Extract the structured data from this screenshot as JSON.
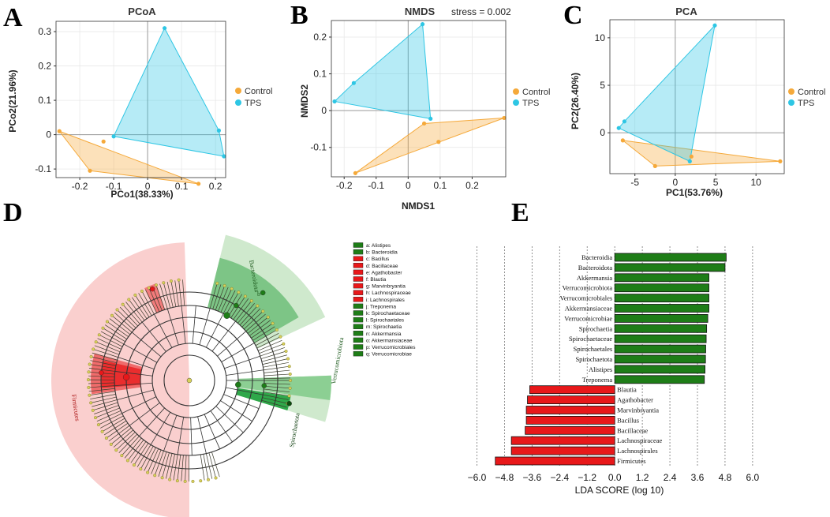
{
  "panels": {
    "A": "A",
    "B": "B",
    "C": "C",
    "D": "D",
    "E": "E"
  },
  "colors": {
    "control": "#f5a93a",
    "tps": "#2ec6e4",
    "green": "#1e7d17",
    "red": "#e8181a",
    "pink": "#f9c7c6"
  },
  "chart_data": [
    {
      "id": "A",
      "type": "scatter",
      "title": "PCoA",
      "subtitle": "",
      "xlabel": "PCo1(38.33%)",
      "ylabel": "PCo2(21.96%)",
      "xlim": [
        -0.27,
        0.23
      ],
      "ylim": [
        -0.125,
        0.33
      ],
      "xticks": [
        -0.2,
        -0.1,
        0,
        0.1,
        0.2
      ],
      "xticklabels": [
        "-0.2",
        "-0.1",
        "0",
        "0.1",
        "0.2"
      ],
      "yticks": [
        -0.1,
        0,
        0.1,
        0.2,
        0.3
      ],
      "yticklabels": [
        "-0.1",
        "0",
        "0.1",
        "0.2",
        "0.3"
      ],
      "legend": [
        "Control",
        "TPS"
      ],
      "series": [
        {
          "name": "Control",
          "points": [
            [
              -0.26,
              0.01
            ],
            [
              -0.13,
              -0.02
            ],
            [
              -0.17,
              -0.105
            ],
            [
              0.15,
              -0.143
            ]
          ],
          "hull": [
            [
              -0.26,
              0.01
            ],
            [
              0.15,
              -0.143
            ],
            [
              -0.17,
              -0.105
            ]
          ]
        },
        {
          "name": "TPS",
          "points": [
            [
              -0.1,
              -0.005
            ],
            [
              0.05,
              0.31
            ],
            [
              0.21,
              0.012
            ],
            [
              0.225,
              -0.063
            ]
          ],
          "hull": [
            [
              -0.1,
              -0.005
            ],
            [
              0.05,
              0.31
            ],
            [
              0.21,
              0.012
            ],
            [
              0.225,
              -0.063
            ]
          ]
        }
      ]
    },
    {
      "id": "B",
      "type": "scatter",
      "title": "NMDS",
      "subtitle": "stress = 0.002",
      "xlabel": "NMDS1",
      "ylabel": "NMDS2",
      "xlim": [
        -0.24,
        0.305
      ],
      "ylim": [
        -0.18,
        0.245
      ],
      "xticks": [
        -0.2,
        -0.1,
        0,
        0.1,
        0.2
      ],
      "xticklabels": [
        "-0.2",
        "-0.1",
        "0",
        "0.1",
        "0.2"
      ],
      "yticks": [
        -0.1,
        0,
        0.1,
        0.2
      ],
      "yticklabels": [
        "-0.1",
        "0",
        "0.1",
        "0.2"
      ],
      "legend": [
        "Control",
        "TPS"
      ],
      "series": [
        {
          "name": "Control",
          "points": [
            [
              -0.165,
              -0.17
            ],
            [
              0.095,
              -0.085
            ],
            [
              0.05,
              -0.035
            ],
            [
              0.3,
              -0.02
            ]
          ],
          "hull": [
            [
              -0.165,
              -0.17
            ],
            [
              0.05,
              -0.035
            ],
            [
              0.3,
              -0.02
            ]
          ]
        },
        {
          "name": "TPS",
          "points": [
            [
              -0.23,
              0.025
            ],
            [
              -0.17,
              0.075
            ],
            [
              0.045,
              0.235
            ],
            [
              0.07,
              -0.022
            ]
          ],
          "hull": [
            [
              -0.23,
              0.025
            ],
            [
              -0.17,
              0.075
            ],
            [
              0.045,
              0.235
            ],
            [
              0.07,
              -0.022
            ]
          ]
        }
      ]
    },
    {
      "id": "C",
      "type": "scatter",
      "title": "PCA",
      "subtitle": "",
      "xlabel": "PC1(53.76%)",
      "ylabel": "PC2(26.40%)",
      "xlim": [
        -8.1,
        13.5
      ],
      "ylim": [
        -4.3,
        11.9
      ],
      "xticks": [
        -5,
        0,
        5,
        10
      ],
      "xticklabels": [
        "-5",
        "0",
        "5",
        "10"
      ],
      "yticks": [
        0,
        5,
        10
      ],
      "yticklabels": [
        "0",
        "5",
        "10"
      ],
      "legend": [
        "Control",
        "TPS"
      ],
      "series": [
        {
          "name": "Control",
          "points": [
            [
              -6.5,
              -0.8
            ],
            [
              -2.5,
              -3.5
            ],
            [
              2,
              -2.5
            ],
            [
              13,
              -3
            ]
          ],
          "hull": [
            [
              -6.5,
              -0.8
            ],
            [
              13,
              -3
            ],
            [
              -2.5,
              -3.5
            ]
          ]
        },
        {
          "name": "TPS",
          "points": [
            [
              -7,
              0.5
            ],
            [
              -6.3,
              1.2
            ],
            [
              4.9,
              11.3
            ],
            [
              1.8,
              -3
            ]
          ],
          "hull": [
            [
              -7,
              0.5
            ],
            [
              -6.3,
              1.2
            ],
            [
              4.9,
              11.3
            ],
            [
              1.8,
              -3
            ]
          ]
        }
      ]
    },
    {
      "id": "E",
      "type": "bar",
      "orientation": "horizontal",
      "xlabel": "LDA SCORE (log 10)",
      "xlim": [
        -6.6,
        7.0
      ],
      "xticks": [
        -6,
        -4.8,
        -3.6,
        -2.4,
        -1.2,
        0,
        1.2,
        2.4,
        3.6,
        4.8,
        6
      ],
      "xticklabels": [
        "−6.0",
        "−4.8",
        "−3.6",
        "−2.4",
        "−1.2",
        "0.0",
        "1.2",
        "2.4",
        "3.6",
        "4.8",
        "6.0"
      ],
      "categories": [
        "Bacteroidia",
        "Bacteroidota",
        "Akkermansia",
        "Verrucomicrobiota",
        "Verrucomicrobiales",
        "Akkermansiaceae",
        "Verrucomicrobiae",
        "Spirochaetia",
        "Spirochaetaceae",
        "Spirochaetales",
        "Spirochaetota",
        "Alistipes",
        "Treponema",
        "Blautia",
        "Agathobacter",
        "Marvinbryantia",
        "Bacillus",
        "Bacillaceae",
        "Lachnospiraceae",
        "Lachnospirales",
        "Firmicutes"
      ],
      "values": [
        4.85,
        4.8,
        4.1,
        4.1,
        4.1,
        4.1,
        4.05,
        4.0,
        3.98,
        3.96,
        3.95,
        3.93,
        3.9,
        -3.7,
        -3.8,
        -3.85,
        -3.85,
        -3.9,
        -4.5,
        -4.5,
        -5.2
      ],
      "groups": [
        "TPS",
        "TPS",
        "TPS",
        "TPS",
        "TPS",
        "TPS",
        "TPS",
        "TPS",
        "TPS",
        "TPS",
        "TPS",
        "TPS",
        "TPS",
        "Control",
        "Control",
        "Control",
        "Control",
        "Control",
        "Control",
        "Control",
        "Control"
      ]
    }
  ],
  "cladogram": {
    "legend": [
      {
        "label": "a: Alistipes",
        "color": "green"
      },
      {
        "label": "b: Bacteroidia",
        "color": "green"
      },
      {
        "label": "c: Bacillus",
        "color": "red"
      },
      {
        "label": "d: Bacillaceae",
        "color": "red"
      },
      {
        "label": "e: Agathobacter",
        "color": "red"
      },
      {
        "label": "f: Blautia",
        "color": "red"
      },
      {
        "label": "g: Marvinbryantia",
        "color": "red"
      },
      {
        "label": "h: Lachnospiraceae",
        "color": "red"
      },
      {
        "label": "i: Lachnospirales",
        "color": "red"
      },
      {
        "label": "j: Treponema",
        "color": "green"
      },
      {
        "label": "k: Spirochaetaceae",
        "color": "green"
      },
      {
        "label": "l: Spirochaetales",
        "color": "green"
      },
      {
        "label": "m: Spirochaetia",
        "color": "green"
      },
      {
        "label": "n: Akkermansia",
        "color": "green"
      },
      {
        "label": "o: Akkermansiaceae",
        "color": "green"
      },
      {
        "label": "p: Verrucomicrobiales",
        "color": "green"
      },
      {
        "label": "q: Verrucomicrobiae",
        "color": "green"
      }
    ],
    "clade_labels": {
      "bacteroidota": "Bacteroidota",
      "firmicutes": "Firmicutes",
      "verrucomicrobiota": "Verrucomicrobiota",
      "spirochaetota": "Spirochaetota",
      "b": "b"
    }
  }
}
